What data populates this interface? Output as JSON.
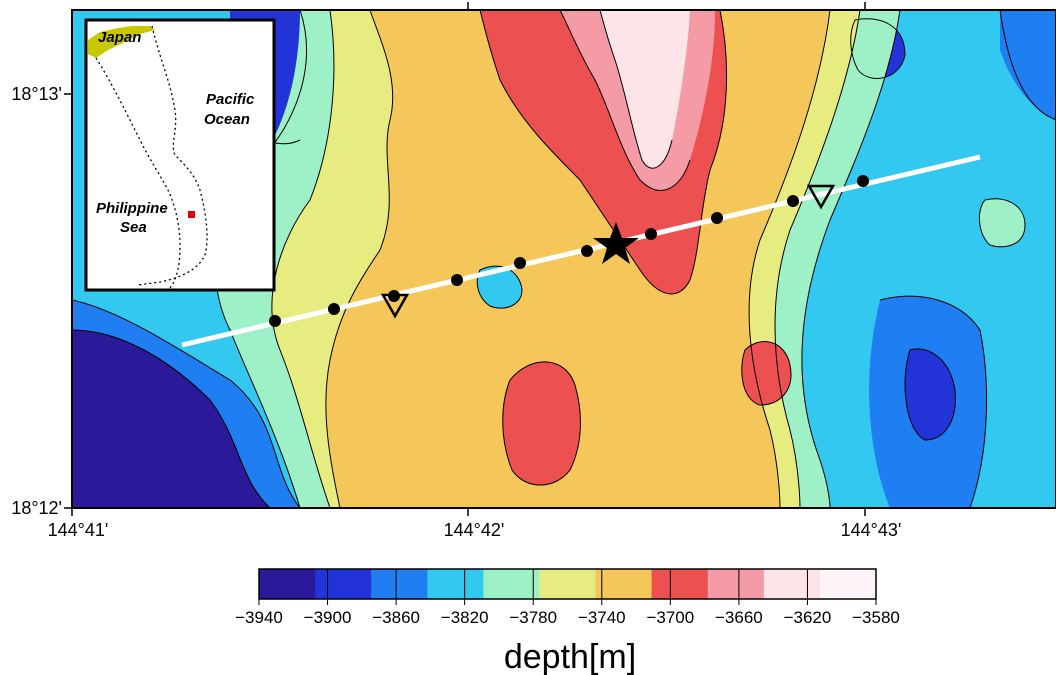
{
  "map": {
    "lat_labels": [
      "18°13'",
      "18°12'"
    ],
    "lon_labels": [
      "144°41'",
      "144°42'",
      "144°43'"
    ],
    "lat_range": [
      18.2,
      18.225
    ],
    "lon_range": [
      144.675,
      144.733
    ]
  },
  "inset": {
    "labels": {
      "japan": "Japan",
      "pacific_1": "Pacific",
      "pacific_2": "Ocean",
      "philippine_1": "Philippine",
      "philippine_2": "Sea"
    },
    "marker_color": "#e00000",
    "land_color": "#c8c800"
  },
  "colorbar": {
    "title": "depth[m]",
    "tick_labels": [
      "−3940",
      "−3900",
      "−3860",
      "−3820",
      "−3780",
      "−3740",
      "−3700",
      "−3660",
      "−3620",
      "−3580"
    ],
    "colors": [
      "#2a1a9a",
      "#2233d8",
      "#1f7ff2",
      "#33c8f0",
      "#9ef0c6",
      "#e6ec80",
      "#f5c65a",
      "#ec5050",
      "#f59ba5",
      "#fde4e8",
      "#fff4f6"
    ]
  },
  "features": {
    "profile_line_color": "#ffffff",
    "station_count": 11,
    "triangle_count": 2,
    "star_count": 1
  }
}
